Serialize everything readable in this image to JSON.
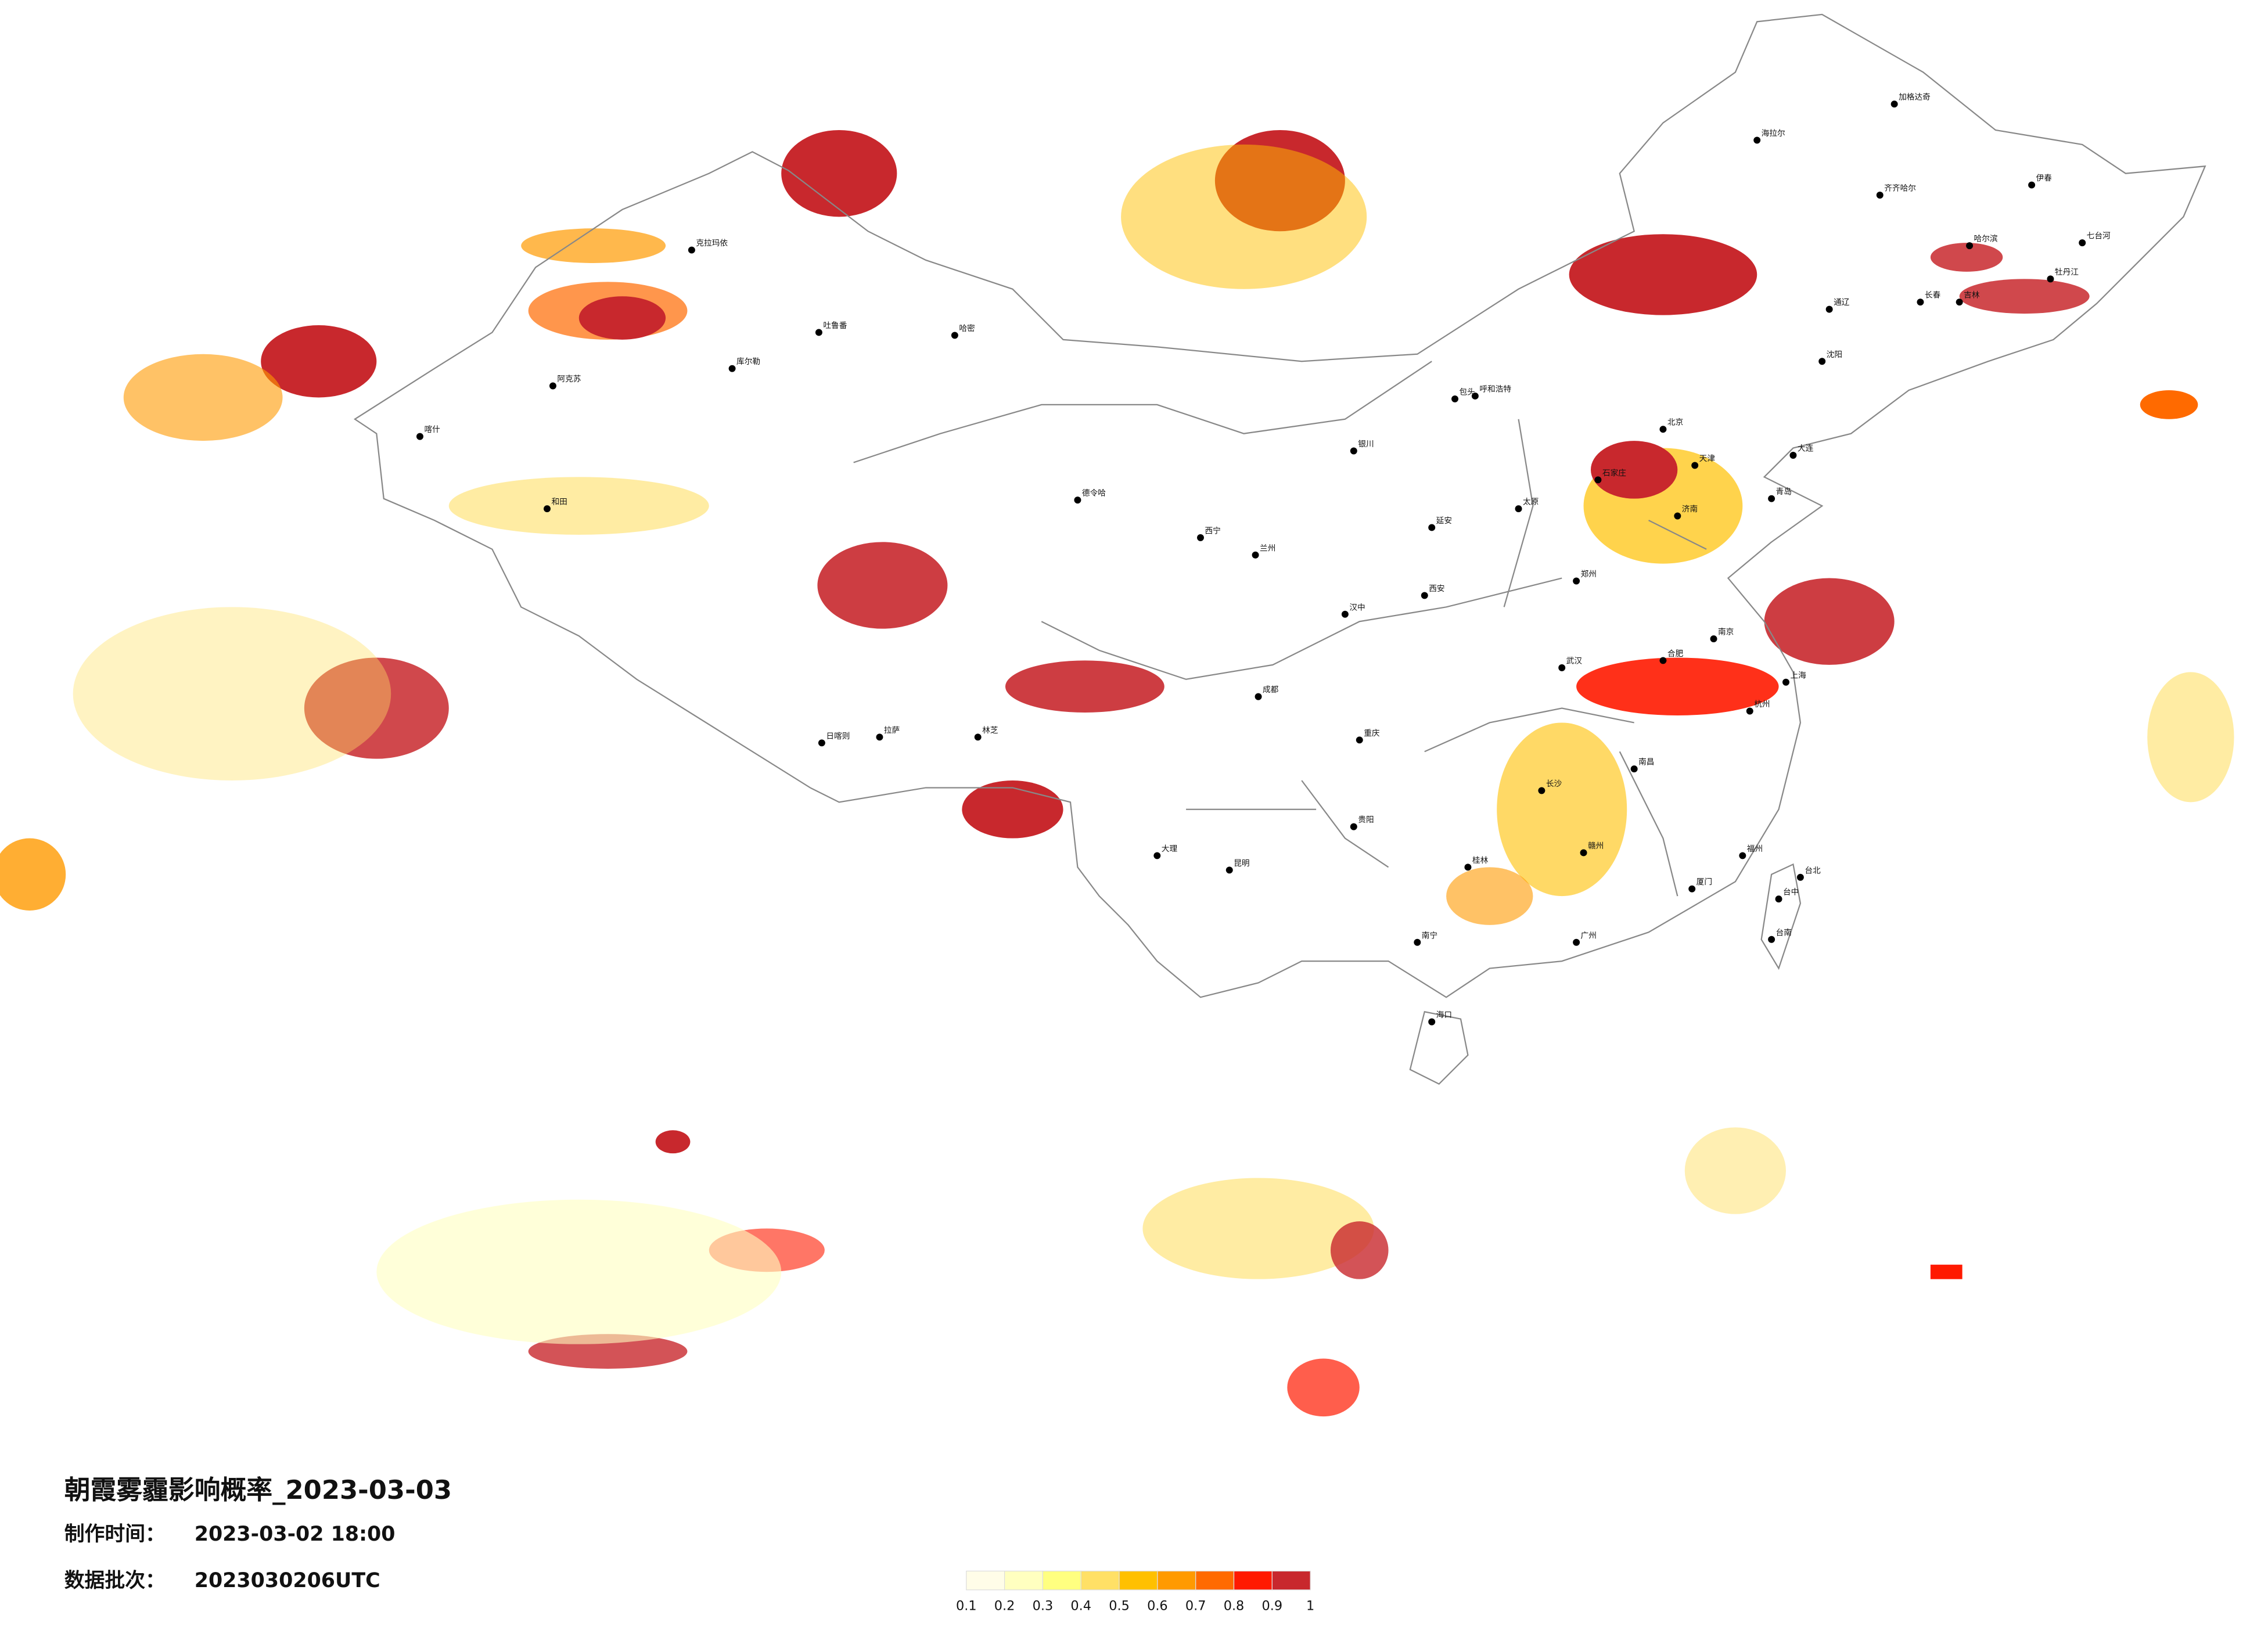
{
  "header": {
    "title": "朝霞雾霾影响概率_2023-03-03",
    "made_label": "制作时间：",
    "made_time": "2023-03-02 18:00",
    "batch_label": "数据批次：",
    "batch": "2023030206UTC"
  },
  "legend": {
    "ticks": [
      0.1,
      0.2,
      0.3,
      0.4,
      0.5,
      0.6,
      0.7,
      0.8,
      0.9,
      1
    ],
    "colors": [
      "#fffde8",
      "#ffffc0",
      "#ffff80",
      "#ffe066",
      "#ffc000",
      "#ff9a00",
      "#ff6a00",
      "#ff1a00",
      "#c8282d"
    ]
  },
  "cities": [
    "加格达奇",
    "海拉尔",
    "齐齐哈尔",
    "伊春",
    "七台河",
    "牡丹江",
    "长春",
    "吉林",
    "通辽",
    "哈尔滨",
    "克拉玛依",
    "喀什",
    "和田",
    "哈密",
    "吐鲁番",
    "库尔勒",
    "阿克苏",
    "拉萨",
    "日喀则",
    "林芝",
    "德令哈",
    "西宁",
    "兰州",
    "银川",
    "呼和浩特",
    "包头",
    "北京",
    "天津",
    "石家庄",
    "太原",
    "济南",
    "郑州",
    "西安",
    "成都",
    "重庆",
    "武汉",
    "南京",
    "上海",
    "杭州",
    "合肥",
    "长沙",
    "南昌",
    "福州",
    "广州",
    "南宁",
    "贵阳",
    "昆明",
    "海口",
    "台北",
    "台中",
    "台南",
    "大理",
    "沈阳",
    "大连",
    "青岛",
    "厦门",
    "赣州",
    "桂林",
    "延安",
    "汉中"
  ]
}
